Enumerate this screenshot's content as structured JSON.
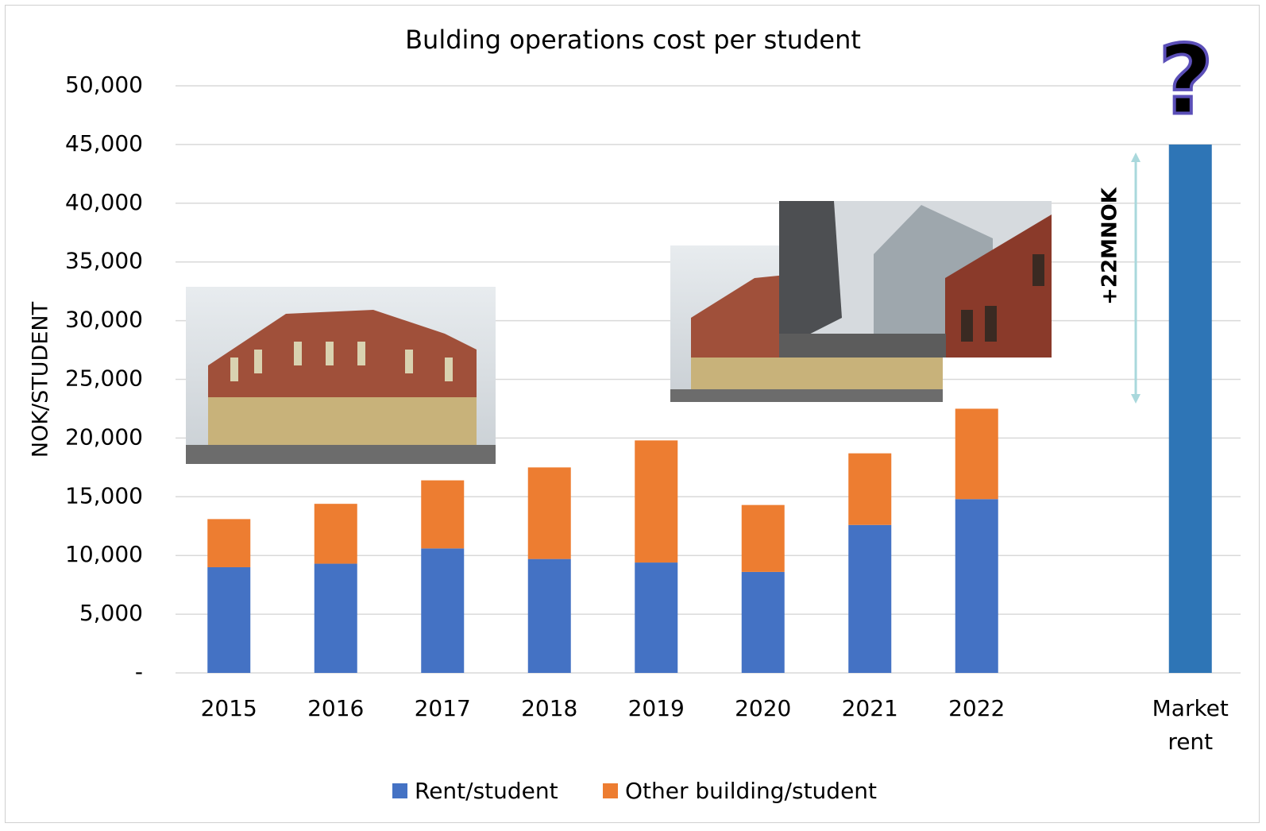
{
  "chart_data": {
    "type": "bar",
    "stacked": true,
    "title": "Bulding operations cost per student",
    "y_label": "NOK/STUDENT",
    "categories": [
      "2015",
      "2016",
      "2017",
      "2018",
      "2019",
      "2020",
      "2021",
      "2022",
      null,
      "Market rent"
    ],
    "series": [
      {
        "name": "Rent/student",
        "color": "#4472c4",
        "colors": [
          "#4472c4",
          "#4472c4",
          "#4472c4",
          "#4472c4",
          "#4472c4",
          "#4472c4",
          "#4472c4",
          "#4472c4",
          null,
          "#2e75b6"
        ],
        "values": [
          9000,
          9300,
          10600,
          9700,
          9400,
          8600,
          12600,
          14800,
          null,
          45000
        ]
      },
      {
        "name": "Other building/student",
        "color": "#ed7d31",
        "values": [
          4100,
          5100,
          5800,
          7800,
          10400,
          5700,
          6100,
          7700,
          null,
          null
        ]
      }
    ],
    "ylim": [
      0,
      50000
    ],
    "yticks": [
      {
        "value": 0,
        "label": "-"
      },
      {
        "value": 5000,
        "label": "5,000"
      },
      {
        "value": 10000,
        "label": "10,000"
      },
      {
        "value": 15000,
        "label": "15,000"
      },
      {
        "value": 20000,
        "label": "20,000"
      },
      {
        "value": 25000,
        "label": "25,000"
      },
      {
        "value": 30000,
        "label": "30,000"
      },
      {
        "value": 35000,
        "label": "35,000"
      },
      {
        "value": 40000,
        "label": "40,000"
      },
      {
        "value": 45000,
        "label": "45,000"
      },
      {
        "value": 50000,
        "label": "50,000"
      }
    ],
    "grid": true,
    "legend": "bottom",
    "annotations": [
      {
        "text": "+22MNOK"
      },
      {
        "text": "?"
      }
    ]
  }
}
